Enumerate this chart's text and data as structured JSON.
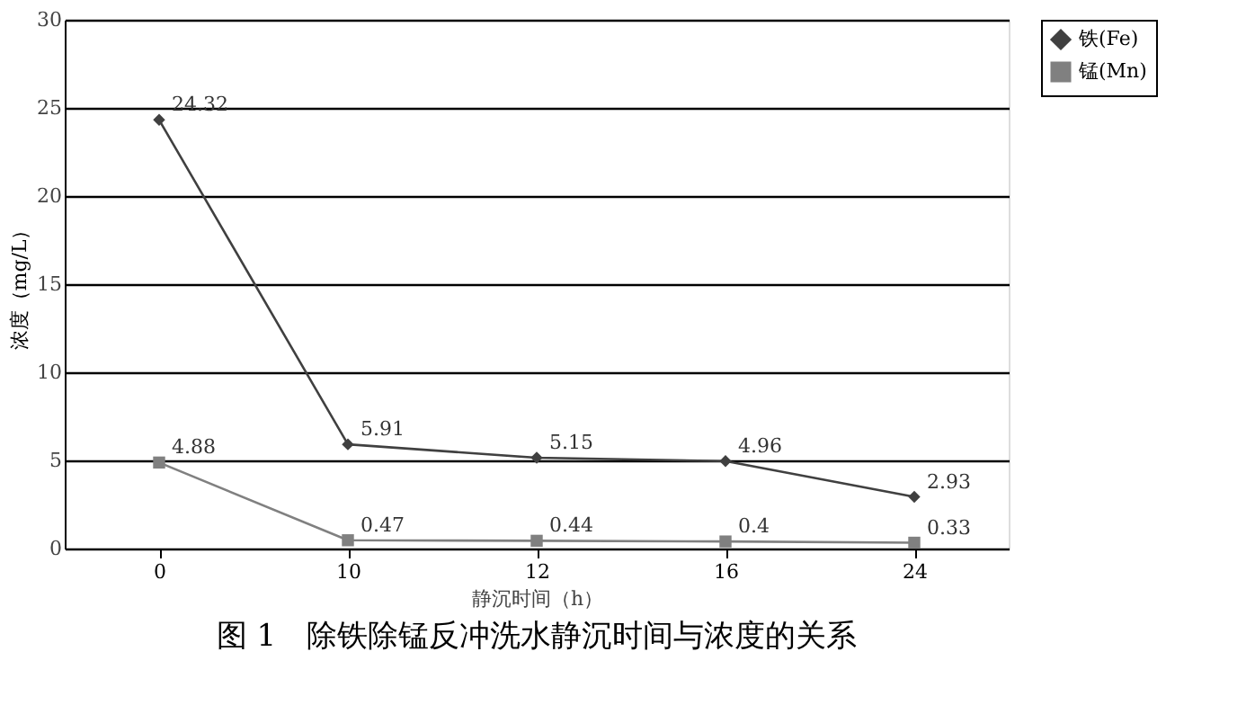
{
  "chart_data": {
    "type": "line",
    "title": "图 1　除铁除锰反冲洗水静沉时间与浓度的关系",
    "xlabel": "静沉时间（h）",
    "ylabel": "浓度（mg/L）",
    "categories": [
      "0",
      "10",
      "12",
      "16",
      "24"
    ],
    "series": [
      {
        "name": "铁(Fe)",
        "color": "#404040",
        "marker": "diamond",
        "values": [
          24.32,
          5.91,
          5.15,
          4.96,
          2.93
        ]
      },
      {
        "name": "锰(Mn)",
        "color": "#808080",
        "marker": "square",
        "values": [
          4.88,
          0.47,
          0.44,
          0.4,
          0.33
        ]
      }
    ],
    "ylim": [
      0,
      30
    ],
    "yticks": [
      0,
      5,
      10,
      15,
      20,
      25,
      30
    ],
    "grid": "y",
    "legend": "right",
    "data_labels": true
  }
}
